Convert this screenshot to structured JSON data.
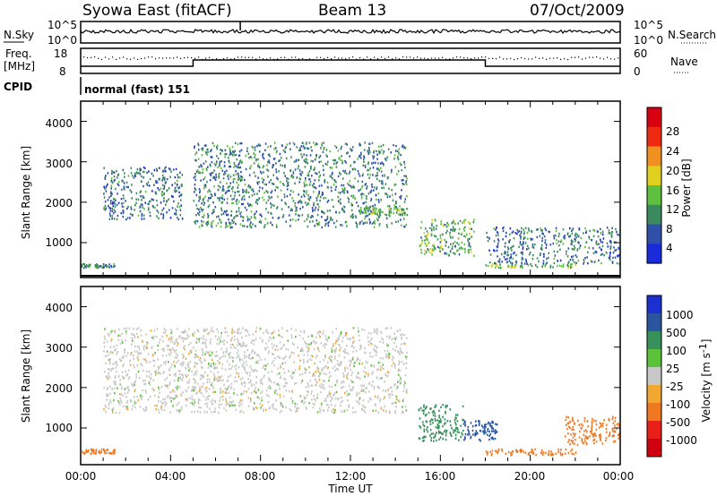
{
  "header": {
    "title": "Syowa East (fitACF)",
    "beam": "Beam 13",
    "date": "07/Oct/2009"
  },
  "noise_panel": {
    "left_label": "N.Sky",
    "right_label": "N.Search",
    "left_ticks": [
      "10^5",
      "10^0"
    ],
    "right_ticks": [
      "10^5",
      "10^0"
    ]
  },
  "freq_panel": {
    "left_label_1": "Freq.",
    "left_label_2": "[MHz]",
    "right_label": "Nave",
    "left_ticks": [
      "18",
      "8"
    ],
    "right_ticks": [
      "60",
      "0"
    ]
  },
  "cpid_panel": {
    "label": "CPID",
    "text": "normal (fast) 151"
  },
  "x_axis": {
    "ticks": [
      "00:00",
      "04:00",
      "08:00",
      "12:00",
      "16:00",
      "20:00",
      "00:00"
    ],
    "title": "Time UT"
  },
  "y_axis": {
    "title": "Slant Range [km]",
    "ticks": [
      "1000",
      "2000",
      "3000",
      "4000"
    ]
  },
  "power_scale": {
    "title": "Power [dB]",
    "labels": [
      "4",
      "8",
      "12",
      "16",
      "20",
      "24",
      "28"
    ],
    "colors": [
      "#1a2bdc",
      "#2f4fa8",
      "#3a8a5e",
      "#5fc040",
      "#e0d020",
      "#f09020",
      "#ee2a10",
      "#d80010"
    ]
  },
  "velocity_scale": {
    "title": "Velocity [m s",
    "title_sup": "-1",
    "title_end": "]",
    "labels": [
      "1000",
      "500",
      "100",
      "25",
      "-25",
      "-100",
      "-500",
      "-1000"
    ],
    "colors": [
      "#1c2fd0",
      "#2a56a0",
      "#36915a",
      "#5cc23a",
      "#c8c8c8",
      "#f0a830",
      "#f07820",
      "#e82018",
      "#d00010"
    ]
  },
  "chart_data": [
    {
      "type": "heatmap",
      "title": "",
      "xlabel": "Time UT",
      "ylabel": "Slant Range [km]",
      "x_range_hours": [
        0,
        24
      ],
      "ylim": [
        180,
        4500
      ],
      "colorbar": "Power [dB]",
      "features": [
        {
          "t": [
            0.0,
            1.5
          ],
          "range": [
            400,
            500
          ],
          "value": 10
        },
        {
          "t": [
            1.0,
            4.5
          ],
          "range": [
            1600,
            2900
          ],
          "value": 8
        },
        {
          "t": [
            5.0,
            14.5
          ],
          "range": [
            1400,
            3500
          ],
          "value": 9
        },
        {
          "t": [
            12.5,
            14.5
          ],
          "range": [
            1700,
            1900
          ],
          "value": 14
        },
        {
          "t": [
            15.0,
            17.5
          ],
          "range": [
            700,
            1600
          ],
          "value": 12
        },
        {
          "t": [
            18.0,
            22.0
          ],
          "range": [
            400,
            500
          ],
          "value": 14
        },
        {
          "t": [
            18.0,
            24.0
          ],
          "range": [
            500,
            1400
          ],
          "value": 8
        }
      ]
    },
    {
      "type": "heatmap",
      "title": "",
      "xlabel": "Time UT",
      "ylabel": "Slant Range [km]",
      "x_range_hours": [
        0,
        24
      ],
      "ylim": [
        180,
        4500
      ],
      "colorbar": "Velocity [m s-1]",
      "features": [
        {
          "t": [
            0.0,
            1.5
          ],
          "range": [
            380,
            500
          ],
          "value": -200
        },
        {
          "t": [
            1.0,
            14.5
          ],
          "range": [
            1400,
            3500
          ],
          "value": 0
        },
        {
          "t": [
            15.0,
            17.0
          ],
          "range": [
            700,
            1600
          ],
          "value": 150
        },
        {
          "t": [
            17.0,
            18.5
          ],
          "range": [
            700,
            1200
          ],
          "value": 800
        },
        {
          "t": [
            18.0,
            22.0
          ],
          "range": [
            350,
            500
          ],
          "value": -150
        },
        {
          "t": [
            21.5,
            24.0
          ],
          "range": [
            600,
            1300
          ],
          "value": -300
        }
      ]
    }
  ]
}
